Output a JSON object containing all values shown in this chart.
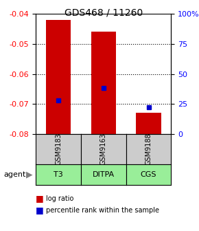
{
  "title": "GDS468 / 11260",
  "ylim_left": [
    -0.08,
    -0.04
  ],
  "ylim_right": [
    0,
    100
  ],
  "yticks_left": [
    -0.08,
    -0.07,
    -0.06,
    -0.05,
    -0.04
  ],
  "yticks_right": [
    0,
    25,
    50,
    75,
    100
  ],
  "ytick_labels_right": [
    "0",
    "25",
    "50",
    "75",
    "100%"
  ],
  "categories": [
    "GSM9183",
    "GSM9163",
    "GSM9188"
  ],
  "agents": [
    "T3",
    "DITPA",
    "CGS"
  ],
  "bar_tops": [
    -0.042,
    -0.046,
    -0.073
  ],
  "bar_bottom": -0.08,
  "bar_color": "#cc0000",
  "bar_width": 0.55,
  "percentile_values": [
    28,
    38,
    22
  ],
  "percentile_color": "#0000cc",
  "agent_bg_color": "#99ee99",
  "gsm_bg_color": "#cccccc",
  "legend_bar_color": "#cc0000",
  "legend_pct_color": "#0000cc"
}
